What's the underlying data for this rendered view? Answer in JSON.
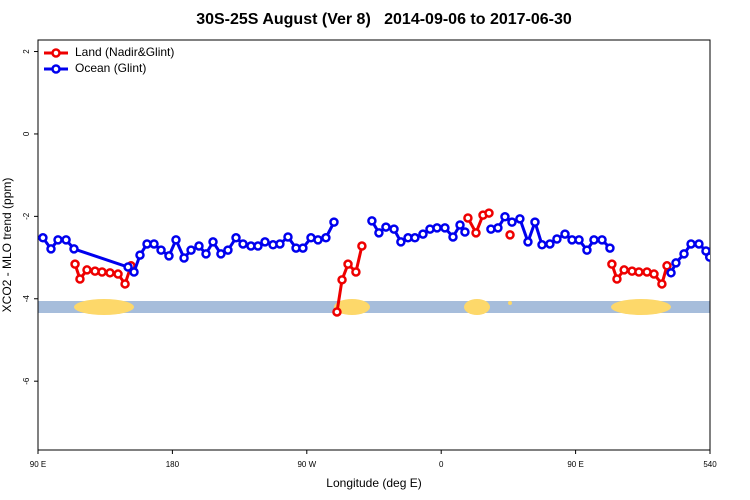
{
  "chart_data": {
    "type": "line",
    "title": "30S-25S August (Ver 8)   2014-09-06 to 2017-06-30",
    "xlabel": "Longitude (deg E)",
    "ylabel": "XCO2 - MLO trend (ppm)",
    "xlim": [
      90,
      540
    ],
    "ylim": [
      -7.67,
      2.28
    ],
    "xticks": [
      {
        "value": 90,
        "label": "90 E"
      },
      180,
      {
        "value": 270,
        "label": "90 W"
      },
      {
        "value": 360,
        "label": "0"
      },
      {
        "value": 450,
        "label": "90 E"
      },
      540
    ],
    "yticks": [
      -6,
      -4,
      -2,
      0,
      2
    ],
    "legend": "upper left",
    "series": [
      {
        "name": "Land (Nadir&Glint)",
        "color": "#ee0000",
        "x": [
          114.8,
          118.1,
          122.8,
          128.2,
          132.9,
          138.2,
          143.6,
          148.3,
          152.3,
          null,
          290.2,
          293.6,
          297.6,
          302.9,
          306.9,
          null,
          377.9,
          383.3,
          388.0,
          392.0,
          null,
          406.1,
          null,
          474.3,
          477.7,
          482.5,
          487.8,
          492.4,
          497.8,
          502.5,
          507.8,
          511.2
        ],
        "values": [
          -3.16,
          -3.52,
          -3.3,
          -3.33,
          -3.35,
          -3.37,
          -3.4,
          -3.64,
          -3.2,
          null,
          -4.32,
          -3.54,
          -3.16,
          -3.35,
          -2.72,
          null,
          -2.04,
          -2.4,
          -1.97,
          -1.92,
          null,
          -2.45,
          null,
          -3.16,
          -3.52,
          -3.3,
          -3.33,
          -3.35,
          -3.35,
          -3.4,
          -3.64,
          -3.2
        ]
      },
      {
        "name": "Ocean (Glint)",
        "color": "#0000ee",
        "x": [
          93.3,
          98.7,
          103.4,
          108.8,
          114.1,
          150.3,
          154.3,
          158.3,
          163.0,
          167.7,
          172.4,
          177.7,
          182.4,
          187.8,
          192.5,
          197.8,
          202.5,
          207.2,
          212.5,
          217.2,
          222.6,
          227.3,
          232.6,
          237.3,
          242.0,
          247.4,
          252.0,
          257.4,
          262.8,
          267.4,
          272.8,
          277.5,
          282.8,
          288.2,
          null,
          313.6,
          318.3,
          323.0,
          328.4,
          333.0,
          337.8,
          342.4,
          347.8,
          352.5,
          357.2,
          362.5,
          367.9,
          372.6,
          375.9,
          null,
          393.3,
          398.0,
          402.7,
          407.4,
          412.7,
          418.1,
          422.8,
          427.5,
          432.8,
          437.5,
          442.9,
          447.6,
          452.3,
          457.6,
          462.3,
          467.7,
          473.0,
          null,
          513.9,
          517.2,
          522.6,
          527.3,
          532.6,
          537.3,
          539.8
        ],
        "values": [
          -2.52,
          -2.79,
          -2.57,
          -2.57,
          -2.79,
          -3.23,
          -3.35,
          -2.94,
          -2.67,
          -2.67,
          -2.82,
          -2.96,
          -2.57,
          -3.01,
          -2.82,
          -2.72,
          -2.91,
          -2.62,
          -2.91,
          -2.82,
          -2.52,
          -2.67,
          -2.72,
          -2.72,
          -2.62,
          -2.69,
          -2.67,
          -2.5,
          -2.77,
          -2.77,
          -2.52,
          -2.57,
          -2.52,
          -2.14,
          null,
          -2.11,
          -2.4,
          -2.26,
          -2.31,
          -2.62,
          -2.52,
          -2.52,
          -2.43,
          -2.31,
          -2.28,
          -2.28,
          -2.5,
          -2.21,
          -2.38,
          null,
          -2.31,
          -2.28,
          -2.01,
          -2.14,
          -2.06,
          -2.62,
          -2.14,
          -2.69,
          -2.67,
          -2.55,
          -2.43,
          -2.57,
          -2.57,
          -2.82,
          -2.57,
          -2.57,
          -2.77,
          null,
          -3.37,
          -3.13,
          -2.91,
          -2.67,
          -2.67,
          -2.84,
          -2.99
        ]
      }
    ]
  }
}
